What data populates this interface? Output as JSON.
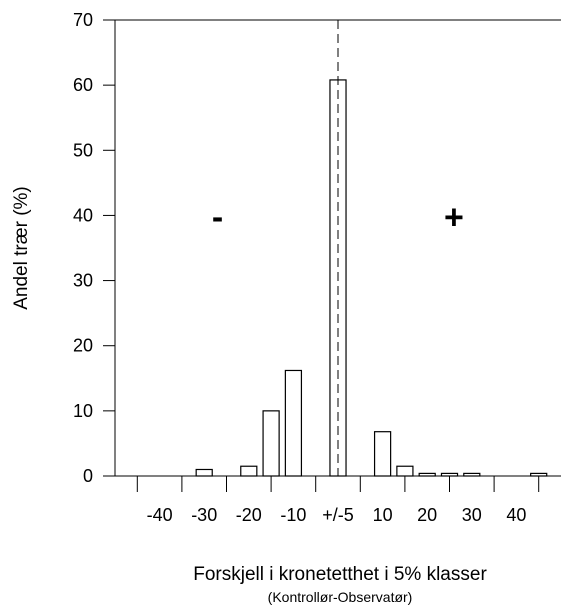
{
  "chart_data": {
    "type": "bar",
    "title": "",
    "xlabel": "Forskjell i kronetetthet i 5% klasser",
    "xlabel_sub": "(Kontrollør-Observatør)",
    "ylabel": "Andel trær (%)",
    "ylim": [
      0,
      70
    ],
    "yticks": [
      0,
      10,
      20,
      30,
      40,
      50,
      60,
      70
    ],
    "xlim": [
      -50,
      50
    ],
    "xticks": [
      {
        "value": -40,
        "label": "-40"
      },
      {
        "value": -30,
        "label": "-30"
      },
      {
        "value": -20,
        "label": "-20"
      },
      {
        "value": -10,
        "label": "-10"
      },
      {
        "value": 0,
        "label": "+/-5"
      },
      {
        "value": 10,
        "label": "10"
      },
      {
        "value": 20,
        "label": "20"
      },
      {
        "value": 30,
        "label": "30"
      },
      {
        "value": 40,
        "label": "40"
      }
    ],
    "bar_width": 3.6,
    "x": [
      -30,
      -20,
      -15,
      -10,
      0,
      10,
      15,
      20,
      25,
      30,
      45
    ],
    "values": [
      1,
      1.5,
      10,
      16.2,
      60.8,
      6.8,
      1.5,
      0.4,
      0.4,
      0.4,
      0.4
    ],
    "center_line": 0,
    "annotations": [
      {
        "text": "-",
        "x": -27,
        "y": 38
      },
      {
        "text": "+",
        "x": 26,
        "y": 38
      }
    ],
    "grid": false
  }
}
